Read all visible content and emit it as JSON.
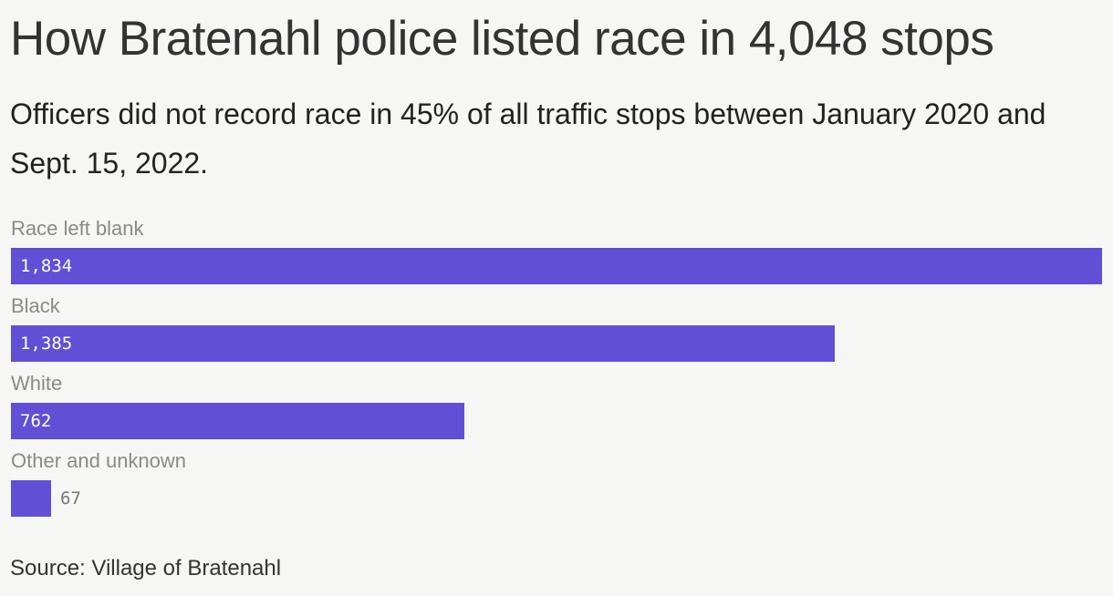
{
  "title": "How Bratenahl police listed race in 4,048 stops",
  "subtitle": "Officers did not record race in 45% of all traffic stops between January 2020 and Sept. 15, 2022.",
  "source": "Source: Village of Bratenahl",
  "chart_data": {
    "type": "bar",
    "orientation": "horizontal",
    "categories": [
      "Race left blank",
      "Black",
      "White",
      "Other and unknown"
    ],
    "values": [
      1834,
      1385,
      762,
      67
    ],
    "value_labels": [
      "1,834",
      "1,385",
      "762",
      "67"
    ],
    "xlim": [
      0,
      1834
    ],
    "grid": false,
    "bar_color": "#614fd6"
  }
}
